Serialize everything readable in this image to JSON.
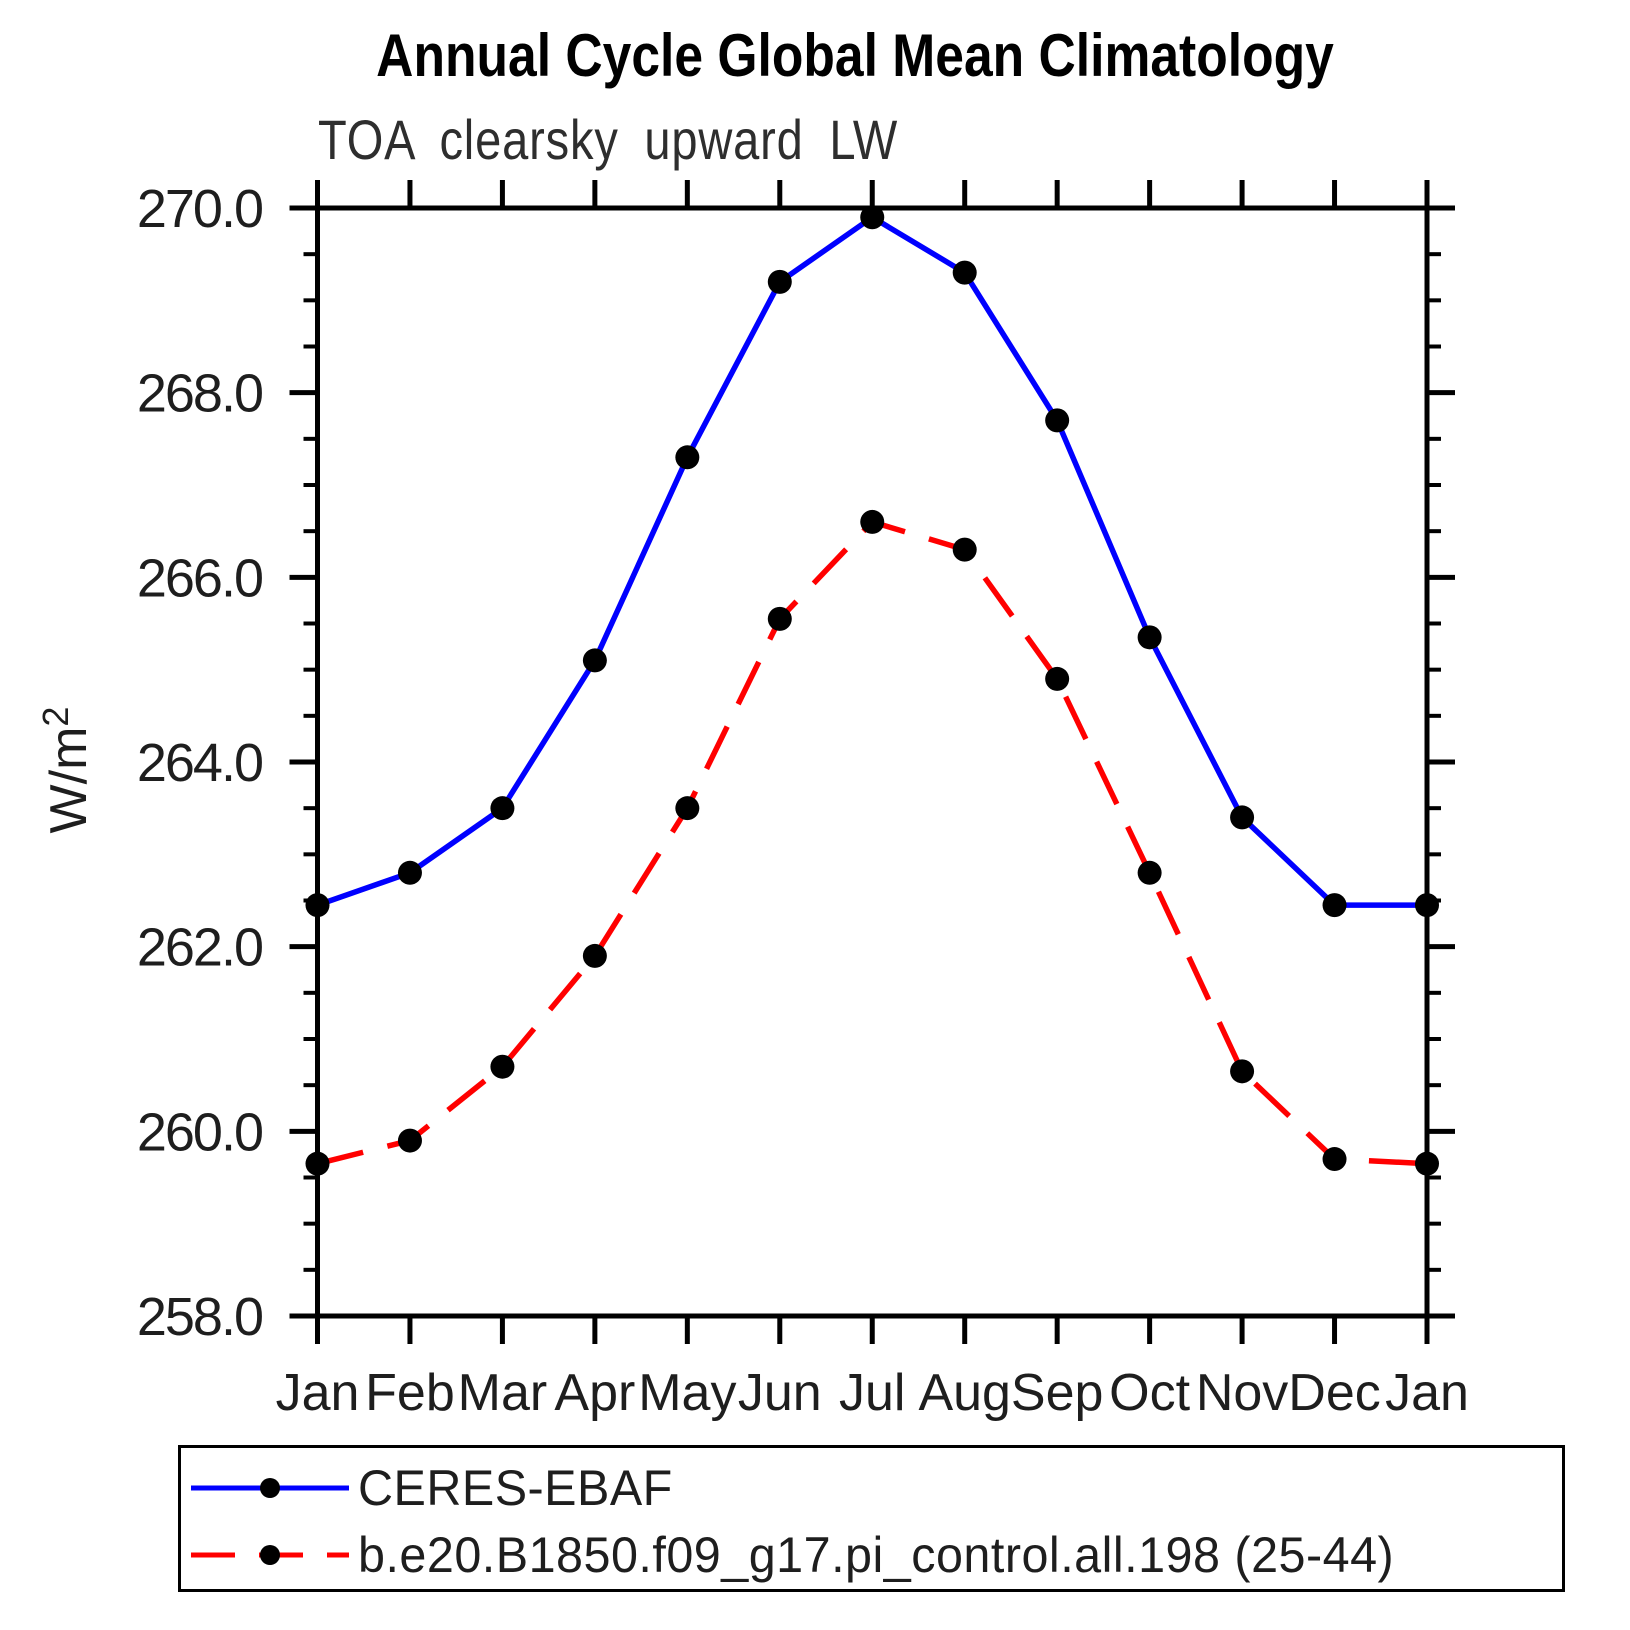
{
  "page": {
    "background": "#ffffff"
  },
  "chart_data": {
    "type": "line",
    "title": "Annual Cycle Global Mean Climatology",
    "subtitle": "TOA clearsky upward LW",
    "xlabel": "",
    "ylabel": "W/m²",
    "ylabel_base": "W/m",
    "ylabel_superscript": "2",
    "categories": [
      "Jan",
      "Feb",
      "Mar",
      "Apr",
      "May",
      "Jun",
      "Jul",
      "Aug",
      "Sep",
      "Oct",
      "Nov",
      "Dec",
      "Jan"
    ],
    "ylim": [
      258.0,
      270.0
    ],
    "ytick_interval": 2.0,
    "ytick_minor_interval": 0.5,
    "ytick_labels": [
      "258.0",
      "260.0",
      "262.0",
      "264.0",
      "266.0",
      "268.0",
      "270.0"
    ],
    "grid": false,
    "legend_position": "bottom-left",
    "marker": {
      "shape": "filled-circle",
      "color": "#000000"
    },
    "series": [
      {
        "name": "CERES-EBAF",
        "color": "#0000ff",
        "line_style": "solid",
        "values": [
          262.45,
          262.8,
          263.5,
          265.1,
          267.3,
          269.2,
          269.9,
          269.3,
          267.7,
          265.35,
          263.4,
          262.45,
          262.45
        ]
      },
      {
        "name": "b.e20.B1850.f09_g17.pi_control.all.198 (25-44)",
        "color": "#ff0000",
        "line_style": "dashed",
        "values": [
          259.65,
          259.9,
          260.7,
          261.9,
          263.5,
          265.55,
          266.6,
          266.3,
          264.9,
          262.8,
          260.65,
          259.7,
          259.65
        ]
      }
    ],
    "axis_color": "#000000",
    "text_color": "#1e1e1e"
  }
}
